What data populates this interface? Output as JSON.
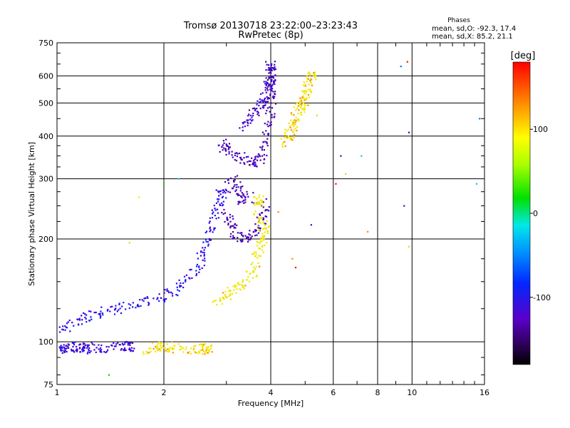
{
  "chart_data": {
    "type": "scatter",
    "title": "Tromsø 20130718 23:22:00–23:23:43",
    "subtitle": "RwPretec (8p)",
    "xlabel": "Frequency [MHz]",
    "ylabel": "Stationary phase Virtual Height [km]",
    "xscale": "log",
    "yscale": "log",
    "xlim": [
      1,
      16
    ],
    "ylim": [
      75,
      750
    ],
    "x_ticks": [
      1,
      2,
      4,
      6,
      8,
      10,
      16
    ],
    "x_tick_labels": [
      "1",
      "2",
      "4",
      "6",
      "8",
      "10",
      "16"
    ],
    "y_ticks": [
      75,
      100,
      200,
      300,
      400,
      500,
      600,
      750
    ],
    "y_tick_labels": [
      "75",
      "100",
      "200",
      "300",
      "400",
      "500",
      "600",
      "750"
    ],
    "grid": true,
    "stats": {
      "header": "Phases",
      "line_o": "mean, sd,O: -92.3, 17.4",
      "line_x": "mean, sd,X:  85.2, 21.1"
    },
    "colorbar": {
      "label": "[deg]",
      "range": [
        -180,
        180
      ],
      "ticks": [
        100,
        0,
        -100
      ],
      "tick_labels": [
        "100",
        "0",
        "-100"
      ]
    },
    "traces": [
      {
        "name": "low-trace-blue",
        "phase": -110,
        "points": [
          [
            1.0,
            96
          ],
          [
            1.05,
            95
          ],
          [
            1.1,
            97
          ],
          [
            1.15,
            96
          ],
          [
            1.2,
            97
          ],
          [
            1.25,
            95
          ],
          [
            1.35,
            96
          ],
          [
            1.5,
            96
          ],
          [
            1.6,
            97
          ]
        ]
      },
      {
        "name": "low-trace-yellow",
        "phase": 95,
        "points": [
          [
            1.8,
            95
          ],
          [
            1.9,
            96
          ],
          [
            2.0,
            97
          ],
          [
            2.1,
            96
          ],
          [
            2.4,
            95
          ],
          [
            2.55,
            96
          ],
          [
            2.65,
            95
          ]
        ]
      },
      {
        "name": "E-F1-trace-blue",
        "phase": -100,
        "points": [
          [
            1.0,
            108
          ],
          [
            1.1,
            112
          ],
          [
            1.2,
            117
          ],
          [
            1.35,
            122
          ],
          [
            1.5,
            125
          ],
          [
            1.7,
            130
          ],
          [
            1.9,
            133
          ],
          [
            2.1,
            140
          ],
          [
            2.3,
            150
          ],
          [
            2.5,
            165
          ],
          [
            2.6,
            185
          ],
          [
            2.7,
            210
          ],
          [
            2.8,
            240
          ],
          [
            2.9,
            270
          ]
        ]
      },
      {
        "name": "F1-cusp-purple",
        "phase": -135,
        "points": [
          [
            3.0,
            240
          ],
          [
            3.1,
            220
          ],
          [
            3.2,
            205
          ],
          [
            3.4,
            200
          ],
          [
            3.6,
            210
          ],
          [
            3.8,
            230
          ],
          [
            3.9,
            255
          ],
          [
            3.0,
            280
          ],
          [
            3.2,
            300
          ],
          [
            3.3,
            260
          ]
        ]
      },
      {
        "name": "F2-lower-purple",
        "phase": -130,
        "points": [
          [
            2.9,
            360
          ],
          [
            3.0,
            380
          ],
          [
            3.2,
            350
          ],
          [
            3.4,
            340
          ],
          [
            3.6,
            335
          ],
          [
            3.8,
            345
          ],
          [
            3.9,
            400
          ],
          [
            4.0,
            450
          ],
          [
            4.0,
            520
          ],
          [
            4.0,
            600
          ],
          [
            4.0,
            640
          ]
        ]
      },
      {
        "name": "F2-mid-blue",
        "phase": -115,
        "points": [
          [
            3.3,
            420
          ],
          [
            3.5,
            450
          ],
          [
            3.7,
            480
          ],
          [
            3.8,
            500
          ],
          [
            3.9,
            540
          ],
          [
            4.0,
            580
          ]
        ]
      },
      {
        "name": "X-lower-yellow",
        "phase": 90,
        "points": [
          [
            2.8,
            130
          ],
          [
            3.0,
            137
          ],
          [
            3.2,
            143
          ],
          [
            3.4,
            150
          ],
          [
            3.6,
            165
          ],
          [
            3.7,
            185
          ],
          [
            3.8,
            200
          ],
          [
            3.9,
            210
          ],
          [
            3.7,
            230
          ],
          [
            3.7,
            260
          ]
        ]
      },
      {
        "name": "X-upper-yellow",
        "phase": 95,
        "points": [
          [
            4.4,
            380
          ],
          [
            4.5,
            400
          ],
          [
            4.6,
            420
          ],
          [
            4.7,
            450
          ],
          [
            4.8,
            480
          ],
          [
            4.9,
            500
          ],
          [
            5.0,
            520
          ],
          [
            5.1,
            560
          ],
          [
            5.2,
            600
          ]
        ]
      },
      {
        "name": "scatter-noise",
        "phase": 0,
        "points": [
          [
            1.4,
            80
          ],
          [
            1.6,
            195
          ],
          [
            1.7,
            265
          ],
          [
            2.0,
            290
          ],
          [
            2.2,
            300
          ],
          [
            4.2,
            240
          ],
          [
            4.6,
            175
          ],
          [
            4.7,
            165
          ],
          [
            5.2,
            220
          ],
          [
            5.4,
            460
          ],
          [
            6.1,
            290
          ],
          [
            6.3,
            350
          ],
          [
            6.5,
            310
          ],
          [
            7.2,
            350
          ],
          [
            7.5,
            210
          ],
          [
            9.3,
            640
          ],
          [
            9.7,
            660
          ],
          [
            9.8,
            410
          ],
          [
            9.8,
            190
          ],
          [
            9.5,
            250
          ],
          [
            15.2,
            290
          ],
          [
            15.5,
            450
          ]
        ]
      }
    ]
  }
}
